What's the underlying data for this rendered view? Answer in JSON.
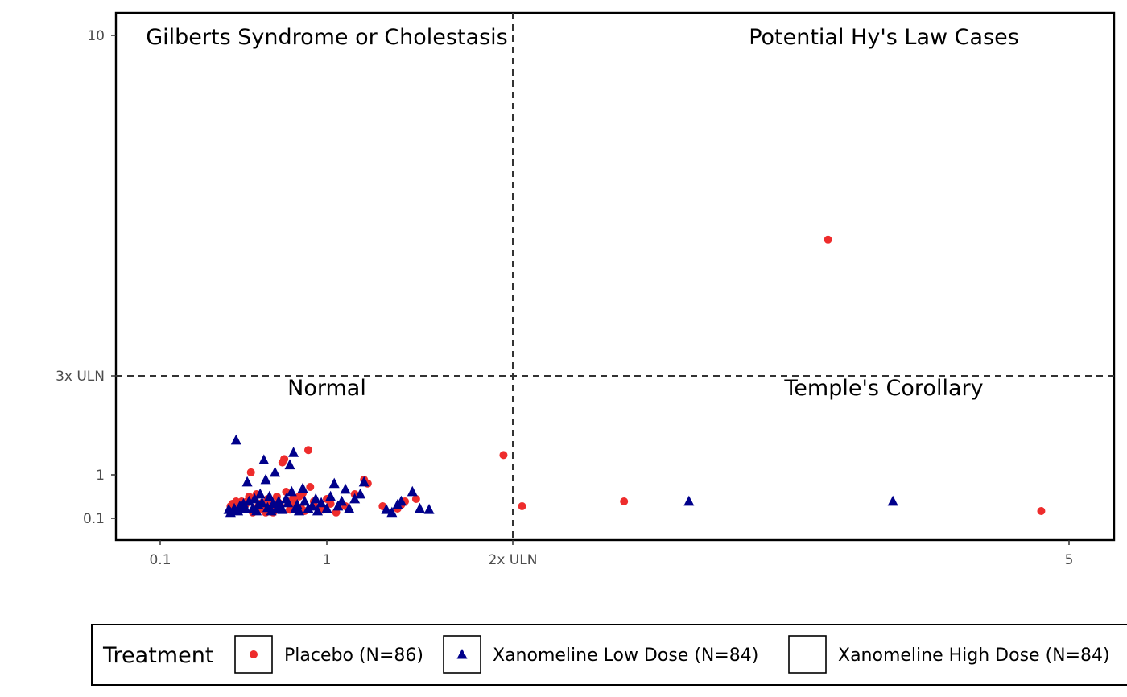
{
  "chart_data": {
    "type": "scatter",
    "title": "",
    "xlabel": "",
    "ylabel": "",
    "x_ticks": [
      {
        "value": 0.1,
        "label": "0.1"
      },
      {
        "value": 1,
        "label": "1"
      },
      {
        "value": 2,
        "label": "2x ULN"
      },
      {
        "value": 5,
        "label": "5"
      }
    ],
    "y_ticks": [
      {
        "value": 0.1,
        "label": "0.1"
      },
      {
        "value": 1,
        "label": "1"
      },
      {
        "value": 3,
        "label": "3x ULN"
      },
      {
        "value": 10,
        "label": "10"
      }
    ],
    "reference_lines": {
      "x": 2,
      "y": 3
    },
    "quadrant_labels": {
      "top_left": "Gilberts Syndrome or Cholestasis",
      "top_right": "Potential Hy's Law Cases",
      "bottom_left": "Normal",
      "bottom_right": "Temple's Corollary"
    },
    "grid": false,
    "legend": {
      "title": "Treatment",
      "position": "bottom",
      "entries": [
        {
          "label": "Placebo (N=86)",
          "shape": "circle",
          "color": "#ee2c2c"
        },
        {
          "label": "Xanomeline Low Dose (N=84)",
          "shape": "triangle",
          "color": "#00008b"
        },
        {
          "label": "Xanomeline High Dose (N=84)",
          "shape": "none",
          "color": "#000000"
        }
      ]
    },
    "series": [
      {
        "name": "Placebo (N=86)",
        "color": "#ee2c2c",
        "marker": "circle",
        "points": [
          [
            0.48,
            0.35
          ],
          [
            0.48,
            0.3
          ],
          [
            0.49,
            0.4
          ],
          [
            0.5,
            0.38
          ],
          [
            0.51,
            0.45
          ],
          [
            0.52,
            0.42
          ],
          [
            0.53,
            0.35
          ],
          [
            0.54,
            0.45
          ],
          [
            0.55,
            0.3
          ],
          [
            0.56,
            0.38
          ],
          [
            0.57,
            0.45
          ],
          [
            0.58,
            0.55
          ],
          [
            0.59,
            1.05
          ],
          [
            0.6,
            0.22
          ],
          [
            0.61,
            0.5
          ],
          [
            0.62,
            0.6
          ],
          [
            0.63,
            0.35
          ],
          [
            0.64,
            0.28
          ],
          [
            0.65,
            0.42
          ],
          [
            0.66,
            0.3
          ],
          [
            0.67,
            0.22
          ],
          [
            0.68,
            0.5
          ],
          [
            0.69,
            0.38
          ],
          [
            0.7,
            0.25
          ],
          [
            0.71,
            0.22
          ],
          [
            0.72,
            0.32
          ],
          [
            0.73,
            0.55
          ],
          [
            0.74,
            0.42
          ],
          [
            0.75,
            0.35
          ],
          [
            0.76,
            1.25
          ],
          [
            0.77,
            1.32
          ],
          [
            0.78,
            0.65
          ],
          [
            0.79,
            0.45
          ],
          [
            0.8,
            0.28
          ],
          [
            0.82,
            0.52
          ],
          [
            0.83,
            0.4
          ],
          [
            0.84,
            0.3
          ],
          [
            0.85,
            0.55
          ],
          [
            0.86,
            0.32
          ],
          [
            0.87,
            0.62
          ],
          [
            0.88,
            0.25
          ],
          [
            0.9,
            1.5
          ],
          [
            0.91,
            0.75
          ],
          [
            0.93,
            0.45
          ],
          [
            0.95,
            0.32
          ],
          [
            0.98,
            0.28
          ],
          [
            1.0,
            0.5
          ],
          [
            1.02,
            0.4
          ],
          [
            1.05,
            0.22
          ],
          [
            1.1,
            0.35
          ],
          [
            1.15,
            0.6
          ],
          [
            1.2,
            0.9
          ],
          [
            1.22,
            0.82
          ],
          [
            1.3,
            0.35
          ],
          [
            1.38,
            0.3
          ],
          [
            1.4,
            0.38
          ],
          [
            1.42,
            0.45
          ],
          [
            1.48,
            0.5
          ],
          [
            1.95,
            1.4
          ],
          [
            2.05,
            0.35
          ],
          [
            2.6,
            0.45
          ],
          [
            3.7,
            5.8
          ],
          [
            4.85,
            0.25
          ]
        ]
      },
      {
        "name": "Xanomeline Low Dose (N=84)",
        "color": "#00008b",
        "marker": "triangle",
        "points": [
          [
            0.47,
            0.28
          ],
          [
            0.48,
            0.22
          ],
          [
            0.5,
            0.3
          ],
          [
            0.51,
            1.7
          ],
          [
            0.52,
            0.25
          ],
          [
            0.53,
            0.35
          ],
          [
            0.55,
            0.4
          ],
          [
            0.56,
            0.3
          ],
          [
            0.57,
            0.85
          ],
          [
            0.58,
            0.45
          ],
          [
            0.6,
            0.3
          ],
          [
            0.61,
            0.5
          ],
          [
            0.62,
            0.25
          ],
          [
            0.63,
            0.38
          ],
          [
            0.64,
            0.6
          ],
          [
            0.65,
            0.42
          ],
          [
            0.66,
            1.3
          ],
          [
            0.67,
            0.9
          ],
          [
            0.68,
            0.32
          ],
          [
            0.69,
            0.55
          ],
          [
            0.7,
            0.25
          ],
          [
            0.71,
            0.4
          ],
          [
            0.72,
            1.05
          ],
          [
            0.73,
            0.3
          ],
          [
            0.74,
            0.45
          ],
          [
            0.75,
            0.35
          ],
          [
            0.76,
            0.28
          ],
          [
            0.78,
            0.5
          ],
          [
            0.79,
            0.42
          ],
          [
            0.8,
            1.2
          ],
          [
            0.81,
            0.65
          ],
          [
            0.82,
            1.45
          ],
          [
            0.83,
            0.3
          ],
          [
            0.84,
            0.38
          ],
          [
            0.85,
            0.25
          ],
          [
            0.87,
            0.72
          ],
          [
            0.88,
            0.45
          ],
          [
            0.9,
            0.3
          ],
          [
            0.92,
            0.35
          ],
          [
            0.94,
            0.5
          ],
          [
            0.95,
            0.25
          ],
          [
            0.97,
            0.42
          ],
          [
            1.0,
            0.3
          ],
          [
            1.02,
            0.55
          ],
          [
            1.04,
            0.82
          ],
          [
            1.06,
            0.35
          ],
          [
            1.08,
            0.45
          ],
          [
            1.1,
            0.7
          ],
          [
            1.12,
            0.3
          ],
          [
            1.15,
            0.5
          ],
          [
            1.18,
            0.6
          ],
          [
            1.2,
            0.85
          ],
          [
            1.32,
            0.28
          ],
          [
            1.35,
            0.22
          ],
          [
            1.38,
            0.38
          ],
          [
            1.4,
            0.45
          ],
          [
            1.46,
            0.65
          ],
          [
            1.5,
            0.3
          ],
          [
            1.55,
            0.28
          ],
          [
            2.95,
            0.45
          ],
          [
            4.05,
            0.45
          ]
        ]
      },
      {
        "name": "Xanomeline High Dose (N=84)",
        "color": "#000000",
        "marker": "none",
        "points": []
      }
    ]
  }
}
